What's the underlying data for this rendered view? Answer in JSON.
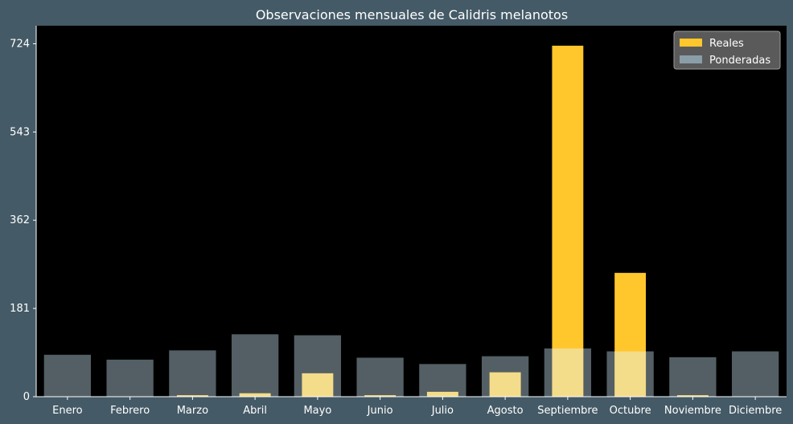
{
  "chart_data": {
    "type": "bar",
    "title": "Observaciones mensuales de Calidris melanotos",
    "xlabel": "",
    "ylabel": "",
    "categories": [
      "Enero",
      "Febrero",
      "Marzo",
      "Abril",
      "Mayo",
      "Junio",
      "Julio",
      "Agosto",
      "Septiembre",
      "Octubre",
      "Noviembre",
      "Diciembre"
    ],
    "series": [
      {
        "name": "Reales",
        "color": "#ffc72c",
        "values": [
          0,
          0,
          3,
          7,
          48,
          3,
          10,
          50,
          720,
          254,
          3,
          0
        ]
      },
      {
        "name": "Ponderadas",
        "color": "#8a9ea7",
        "opacity": 0.6,
        "values": [
          86,
          76,
          95,
          128,
          126,
          80,
          67,
          83,
          99,
          93,
          81,
          93
        ]
      }
    ],
    "yticks": [
      0,
      181,
      362,
      543,
      724
    ],
    "ylim": [
      0,
      761
    ],
    "grid": false,
    "legend": "top-right",
    "colors": {
      "background": "#445a66",
      "plot_background": "#000000",
      "text": "#ffffff"
    }
  }
}
